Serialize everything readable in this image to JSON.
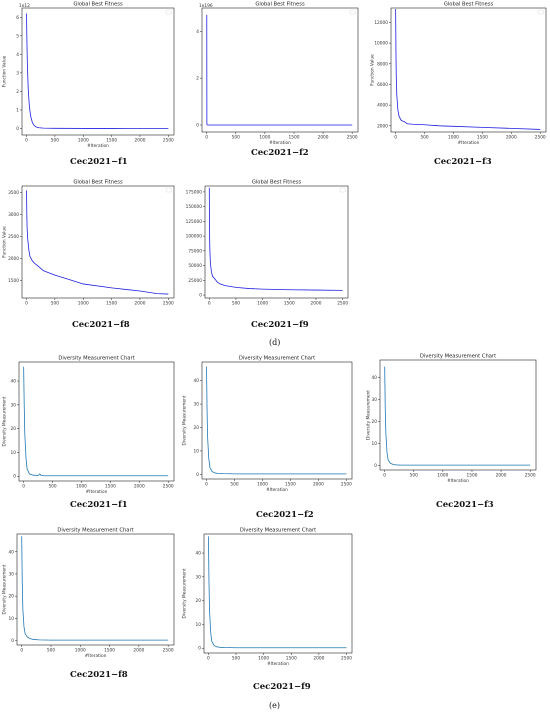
{
  "section_labels": [
    "(d)",
    "(e)"
  ],
  "captions": [
    "Cec2021−f1",
    "Cec2021−f2",
    "Cec2021−f3",
    "Cec2021−f8",
    "Cec2021−f9",
    "Cec2021−f1",
    "Cec2021−f2",
    "Cec2021−f3",
    "Cec2021−f8",
    "Cec2021−f9"
  ],
  "colors": {
    "fitness_line": "#1f1fe0",
    "diversity_line": "#1f77b4",
    "axis": "#222222"
  },
  "chart_data": [
    {
      "id": "d-f1",
      "type": "line",
      "title": "Global Best Fitness",
      "xlabel": "#Iteration",
      "ylabel": "Function Value",
      "offset_text": "1e12",
      "xlim": [
        -80,
        2600
      ],
      "ylim": [
        -0.35,
        6.5
      ],
      "xticks": [
        0,
        500,
        1000,
        1500,
        2000,
        2500
      ],
      "yticks": [
        0,
        1,
        2,
        3,
        4,
        5,
        6
      ],
      "x": [
        0,
        5,
        15,
        30,
        50,
        70,
        100,
        130,
        170,
        220,
        300,
        500,
        1000,
        1500,
        2000,
        2500
      ],
      "y": [
        6.2,
        5.0,
        3.4,
        2.1,
        1.2,
        0.7,
        0.35,
        0.18,
        0.08,
        0.04,
        0.02,
        0.01,
        0.005,
        0.003,
        0.002,
        0.002
      ],
      "legend": "top-right"
    },
    {
      "id": "d-f2",
      "type": "line",
      "title": "Global Best Fitness",
      "xlabel": "#Iteration",
      "ylabel": "",
      "offset_text": "1e196",
      "xlim": [
        -80,
        2600
      ],
      "ylim": [
        -0.3,
        5.0
      ],
      "xticks": [
        0,
        500,
        1000,
        1500,
        2000,
        2500
      ],
      "yticks": [
        0,
        2,
        4
      ],
      "x": [
        0,
        2,
        4,
        10,
        50,
        500,
        1000,
        2500
      ],
      "y": [
        4.7,
        4.7,
        0.03,
        0.0,
        0.0,
        0.0,
        0.0,
        0.0
      ],
      "legend": "top-right"
    },
    {
      "id": "d-f3",
      "type": "line",
      "title": "Global Best Fitness",
      "xlabel": "#Iteration",
      "ylabel": "Function Value",
      "offset_text": "",
      "xlim": [
        -80,
        2600
      ],
      "ylim": [
        1400,
        13400
      ],
      "xticks": [
        0,
        500,
        1000,
        1500,
        2000,
        2500
      ],
      "yticks": [
        2000,
        4000,
        6000,
        8000,
        10000,
        12000
      ],
      "x": [
        0,
        5,
        10,
        20,
        40,
        60,
        100,
        150,
        200,
        300,
        500,
        750,
        1000,
        1500,
        2000,
        2500
      ],
      "y": [
        13300,
        9500,
        7000,
        5000,
        3500,
        2900,
        2500,
        2400,
        2200,
        2150,
        2100,
        2000,
        1950,
        1850,
        1750,
        1650
      ],
      "legend": "top-right"
    },
    {
      "id": "d-f8",
      "type": "line",
      "title": "Global Best Fitness",
      "xlabel": "",
      "ylabel": "Function Value",
      "offset_text": "",
      "xlim": [
        -80,
        2600
      ],
      "ylim": [
        1100,
        3650
      ],
      "xticks": [
        0,
        500,
        1000,
        1500,
        2000,
        2500
      ],
      "yticks": [
        1500,
        2000,
        2500,
        3000,
        3500
      ],
      "x": [
        0,
        5,
        10,
        20,
        40,
        60,
        100,
        150,
        200,
        300,
        500,
        750,
        1000,
        1500,
        2000,
        2300,
        2500
      ],
      "y": [
        3550,
        3000,
        2700,
        2450,
        2200,
        2050,
        1950,
        1880,
        1830,
        1720,
        1620,
        1520,
        1420,
        1330,
        1260,
        1200,
        1190
      ],
      "legend": "top-right"
    },
    {
      "id": "d-f9",
      "type": "line",
      "title": "Global Best Fitness",
      "xlabel": "",
      "ylabel": "",
      "offset_text": "",
      "xlim": [
        -80,
        2600
      ],
      "ylim": [
        -5000,
        185000
      ],
      "xticks": [
        0,
        500,
        1000,
        1500,
        2000,
        2500
      ],
      "yticks": [
        0,
        25000,
        50000,
        75000,
        100000,
        125000,
        150000,
        175000
      ],
      "x": [
        0,
        5,
        10,
        20,
        40,
        60,
        100,
        150,
        200,
        300,
        500,
        750,
        1000,
        1500,
        2000,
        2500
      ],
      "y": [
        182000,
        110000,
        80000,
        55000,
        40000,
        32000,
        28000,
        22000,
        19000,
        16000,
        13000,
        11000,
        10000,
        9000,
        8500,
        8000
      ],
      "legend": "top-right"
    },
    {
      "id": "e-f1",
      "type": "line",
      "title": "Diversity Measurement Chart",
      "xlabel": "#Iteration",
      "ylabel": "Diversity Measurement",
      "offset_text": "",
      "xlim": [
        -80,
        2600
      ],
      "ylim": [
        -2,
        48
      ],
      "xticks": [
        0,
        500,
        1000,
        1500,
        2000,
        2500
      ],
      "yticks": [
        0,
        10,
        20,
        30,
        40
      ],
      "x": [
        0,
        5,
        10,
        20,
        40,
        60,
        100,
        150,
        250,
        280,
        300,
        350,
        500,
        1000,
        1500,
        2000,
        2500
      ],
      "y": [
        46,
        38,
        30,
        18,
        8,
        3,
        1,
        0.5,
        0.3,
        1.0,
        0.3,
        0.2,
        0.2,
        0.2,
        0.2,
        0.2,
        0.2
      ]
    },
    {
      "id": "e-f2",
      "type": "line",
      "title": "Diversity Measurement Chart",
      "xlabel": "#Iteration",
      "ylabel": "Diversity Measurement",
      "offset_text": "",
      "xlim": [
        -80,
        2600
      ],
      "ylim": [
        -2,
        48
      ],
      "xticks": [
        0,
        500,
        1000,
        1500,
        2000,
        2500
      ],
      "yticks": [
        0,
        10,
        20,
        30,
        40
      ],
      "x": [
        0,
        5,
        10,
        20,
        40,
        60,
        100,
        150,
        200,
        300,
        500,
        1000,
        1500,
        2000,
        2500
      ],
      "y": [
        46,
        38,
        28,
        16,
        7,
        3,
        1.2,
        0.6,
        0.4,
        0.3,
        0.2,
        0.2,
        0.2,
        0.2,
        0.2
      ]
    },
    {
      "id": "e-f3",
      "type": "line",
      "title": "Diversity Measurement Chart",
      "xlabel": "#Iteration",
      "ylabel": "Diversity Measurement",
      "offset_text": "",
      "xlim": [
        -80,
        2600
      ],
      "ylim": [
        -2,
        48
      ],
      "xticks": [
        0,
        500,
        1000,
        1500,
        2000,
        2500
      ],
      "yticks": [
        0,
        10,
        20,
        30,
        40
      ],
      "x": [
        0,
        5,
        10,
        20,
        40,
        60,
        100,
        150,
        200,
        300,
        500,
        1000,
        1500,
        2000,
        2500
      ],
      "y": [
        45,
        36,
        26,
        15,
        6,
        2.5,
        1,
        0.5,
        0.3,
        0.2,
        0.2,
        0.2,
        0.2,
        0.2,
        0.2
      ]
    },
    {
      "id": "e-f8",
      "type": "line",
      "title": "Diversity Measurement Chart",
      "xlabel": "#Iteration",
      "ylabel": "Diversity Measurement",
      "offset_text": "",
      "xlim": [
        -80,
        2600
      ],
      "ylim": [
        -2,
        48
      ],
      "xticks": [
        0,
        500,
        1000,
        1500,
        2000,
        2500
      ],
      "yticks": [
        0,
        10,
        20,
        30,
        40
      ],
      "x": [
        0,
        5,
        10,
        20,
        40,
        60,
        100,
        150,
        200,
        300,
        500,
        1000,
        1500,
        2000,
        2500
      ],
      "y": [
        47,
        36,
        26,
        14,
        6,
        3,
        1.5,
        0.8,
        0.5,
        0.3,
        0.2,
        0.2,
        0.2,
        0.2,
        0.2
      ]
    },
    {
      "id": "e-f9",
      "type": "line",
      "title": "Diversity Measurement Chart",
      "xlabel": "#Iteration",
      "ylabel": "Diversity Measurement",
      "offset_text": "",
      "xlim": [
        -80,
        2600
      ],
      "ylim": [
        -2,
        48
      ],
      "xticks": [
        0,
        500,
        1000,
        1500,
        2000,
        2500
      ],
      "yticks": [
        0,
        10,
        20,
        30,
        40
      ],
      "x": [
        0,
        5,
        10,
        20,
        40,
        60,
        100,
        150,
        200,
        300,
        500,
        1000,
        1500,
        2000,
        2500
      ],
      "y": [
        47,
        38,
        28,
        16,
        7,
        3,
        1.2,
        0.6,
        0.4,
        0.3,
        0.2,
        0.2,
        0.2,
        0.2,
        0.2
      ]
    }
  ]
}
